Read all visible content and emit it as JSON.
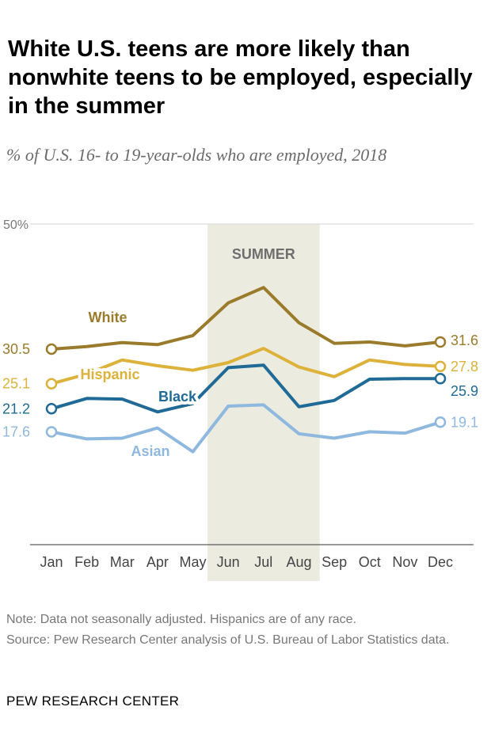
{
  "title": "White U.S. teens are more likely than nonwhite teens to be employed, especially in the summer",
  "subtitle": "% of U.S. 16- to 19-year-olds who are employed, 2018",
  "note": "Note: Data not seasonally adjusted. Hispanics are of any race.",
  "source": "Source: Pew Research Center analysis of U.S. Bureau of Labor Statistics data.",
  "brand": "PEW RESEARCH CENTER",
  "chart_data": {
    "type": "line",
    "title": "White U.S. teens are more likely than nonwhite teens to be employed, especially in the summer",
    "subtitle": "% of U.S. 16- to 19-year-olds who are employed, 2018",
    "x": [
      "Jan",
      "Feb",
      "Mar",
      "Apr",
      "May",
      "Jun",
      "Jul",
      "Aug",
      "Sep",
      "Oct",
      "Nov",
      "Dec"
    ],
    "ylim": [
      0,
      50
    ],
    "ytick_label": "50%",
    "grid": true,
    "highlight": {
      "label": "SUMMER",
      "from": "Jun",
      "to": "Aug",
      "color": "#ecebe0"
    },
    "series": [
      {
        "name": "White",
        "color": "#9a7b2b",
        "start_label": "30.5",
        "end_label": "31.6",
        "values": [
          30.5,
          30.9,
          31.5,
          31.2,
          32.6,
          37.7,
          40.1,
          34.6,
          31.4,
          31.6,
          31.0,
          31.6
        ]
      },
      {
        "name": "Hispanic",
        "color": "#dcb23a",
        "start_label": "25.1",
        "end_label": "27.8",
        "values": [
          25.1,
          26.6,
          28.8,
          27.9,
          27.2,
          28.4,
          30.6,
          27.7,
          26.2,
          28.8,
          28.1,
          27.8
        ]
      },
      {
        "name": "Black",
        "color": "#1f6a96",
        "start_label": "21.2",
        "end_label": "25.9",
        "values": [
          21.2,
          22.8,
          22.7,
          20.7,
          22.0,
          27.6,
          28.0,
          21.5,
          22.5,
          25.8,
          25.9,
          25.9
        ]
      },
      {
        "name": "Asian",
        "color": "#8fb8df",
        "start_label": "17.6",
        "end_label": "19.1",
        "values": [
          17.6,
          16.5,
          16.6,
          18.2,
          14.5,
          21.6,
          21.8,
          17.3,
          16.6,
          17.6,
          17.4,
          19.1
        ]
      }
    ]
  }
}
